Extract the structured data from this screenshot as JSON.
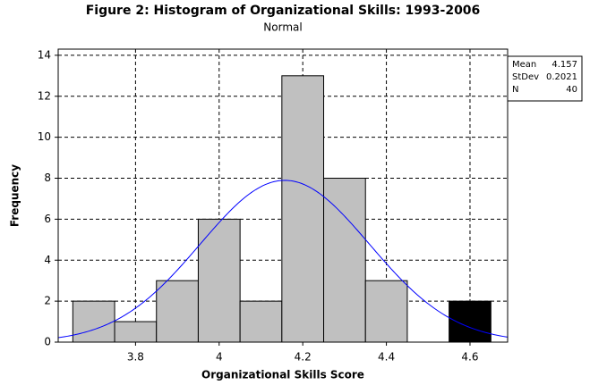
{
  "chart_data": {
    "type": "histogram",
    "title": "Figure 2: Histogram of Organizational Skills: 1993-2006",
    "subtitle": "Normal",
    "x_label": "Organizational Skills Score",
    "y_label": "Frequency",
    "bins": [
      3.65,
      3.75,
      3.85,
      3.95,
      4.05,
      4.15,
      4.25,
      4.35,
      4.45,
      4.55,
      4.65
    ],
    "values": [
      2,
      1,
      3,
      6,
      2,
      13,
      8,
      3,
      0,
      2
    ],
    "bar_colors": [
      "#c0c0c0",
      "#c0c0c0",
      "#c0c0c0",
      "#c0c0c0",
      "#c0c0c0",
      "#c0c0c0",
      "#c0c0c0",
      "#c0c0c0",
      "#c0c0c0",
      "#000000"
    ],
    "curve_color": "#0000ff",
    "xlim": [
      3.615,
      4.69
    ],
    "xticks": [
      3.8,
      4.0,
      4.2,
      4.4,
      4.6
    ],
    "ylim": [
      0,
      14.3
    ],
    "yticks": [
      0,
      2,
      4,
      6,
      8,
      10,
      12,
      14
    ],
    "grid": true,
    "stats": [
      {
        "label": "Mean",
        "value": 4.157
      },
      {
        "label": "StDev",
        "value": 0.2021
      },
      {
        "label": "N",
        "value": 40
      }
    ]
  }
}
